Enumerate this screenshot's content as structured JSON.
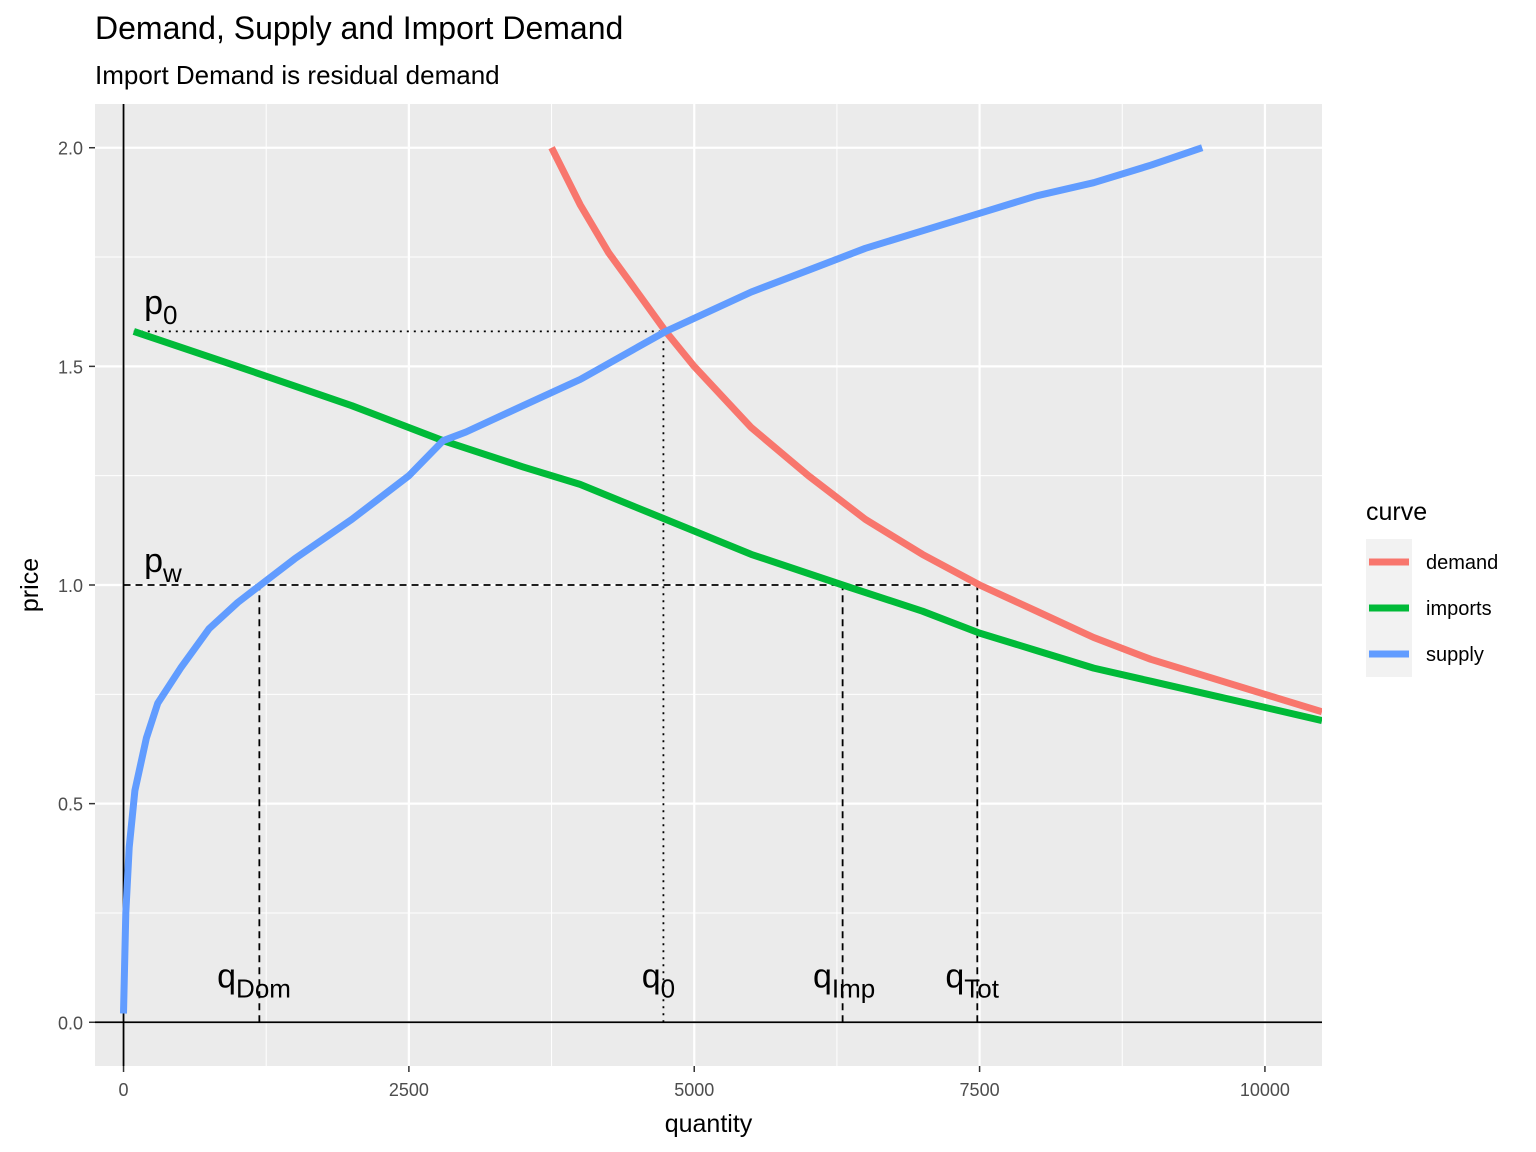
{
  "chart_data": {
    "type": "line",
    "title": "Demand, Supply and Import Demand",
    "subtitle": "Import Demand is residual demand",
    "xlabel": "quantity",
    "ylabel": "price",
    "xlim": [
      -250,
      10500
    ],
    "ylim": [
      -0.1,
      2.1
    ],
    "grid": true,
    "x_ticks": [
      0,
      2500,
      5000,
      7500,
      10000
    ],
    "x_tick_labels": [
      "0",
      "2500",
      "5000",
      "7500",
      "10000"
    ],
    "y_ticks": [
      0.0,
      0.5,
      1.0,
      1.5,
      2.0
    ],
    "y_tick_labels": [
      "0.0",
      "0.5",
      "1.0",
      "1.5",
      "2.0"
    ],
    "legend": {
      "title": "curve",
      "position": "right",
      "entries": [
        "demand",
        "imports",
        "supply"
      ]
    },
    "series": [
      {
        "name": "demand",
        "color": "#F8766D",
        "x": [
          3750,
          4000,
          4250,
          4500,
          4750,
          5000,
          5500,
          6000,
          6500,
          7000,
          7500,
          8000,
          8500,
          9000,
          9500,
          10000,
          10500
        ],
        "y": [
          2.0,
          1.87,
          1.76,
          1.67,
          1.58,
          1.5,
          1.36,
          1.25,
          1.15,
          1.07,
          1.0,
          0.94,
          0.88,
          0.83,
          0.79,
          0.75,
          0.71
        ]
      },
      {
        "name": "imports",
        "color": "#00BA38",
        "x": [
          90,
          1000,
          2000,
          2800,
          3500,
          4000,
          4750,
          5500,
          6300,
          7000,
          7500,
          8000,
          8500,
          9000,
          9500,
          10000,
          10500
        ],
        "y": [
          1.58,
          1.5,
          1.41,
          1.33,
          1.27,
          1.23,
          1.15,
          1.07,
          1.0,
          0.94,
          0.89,
          0.85,
          0.81,
          0.78,
          0.75,
          0.72,
          0.69
        ]
      },
      {
        "name": "supply",
        "color": "#619CFF",
        "x": [
          0,
          20,
          50,
          100,
          200,
          300,
          500,
          750,
          1000,
          1200,
          1500,
          2000,
          2500,
          2800,
          3000,
          3500,
          4000,
          4750,
          5000,
          5500,
          6000,
          6500,
          7000,
          7500,
          8000,
          8500,
          9000,
          9450
        ],
        "y": [
          0.02,
          0.25,
          0.4,
          0.53,
          0.65,
          0.73,
          0.81,
          0.9,
          0.96,
          1.0,
          1.06,
          1.15,
          1.25,
          1.33,
          1.35,
          1.41,
          1.47,
          1.58,
          1.61,
          1.67,
          1.72,
          1.77,
          1.81,
          1.85,
          1.89,
          1.92,
          1.96,
          2.0
        ]
      }
    ],
    "reference_lines": [
      {
        "kind": "horizontal",
        "y": 1.58,
        "x_from": 90,
        "x_to": 4730,
        "style": "dotted"
      },
      {
        "kind": "vertical",
        "x": 4730,
        "y_from": 0,
        "y_to": 1.58,
        "style": "dotted"
      },
      {
        "kind": "horizontal",
        "y": 1.0,
        "x_from": 0,
        "x_to": 7480,
        "style": "dashed"
      },
      {
        "kind": "vertical",
        "x": 1190,
        "y_from": 0,
        "y_to": 1.0,
        "style": "dashed"
      },
      {
        "kind": "vertical",
        "x": 6300,
        "y_from": 0,
        "y_to": 1.0,
        "style": "dashed"
      },
      {
        "kind": "vertical",
        "x": 7480,
        "y_from": 0,
        "y_to": 1.0,
        "style": "dashed"
      }
    ],
    "axis_lines": [
      {
        "kind": "horizontal",
        "y": 0.0
      },
      {
        "kind": "vertical",
        "x": 0
      }
    ],
    "annotations": [
      {
        "main": "p",
        "sub": "0",
        "x": 180,
        "y": 1.62
      },
      {
        "main": "p",
        "sub": "w",
        "x": 180,
        "y": 1.03
      },
      {
        "main": "q",
        "sub": "Dom",
        "x": 820,
        "y": 0.08
      },
      {
        "main": "q",
        "sub": "0",
        "x": 4540,
        "y": 0.08
      },
      {
        "main": "q",
        "sub": "Imp",
        "x": 6040,
        "y": 0.08
      },
      {
        "main": "q",
        "sub": "Tot",
        "x": 7200,
        "y": 0.08
      }
    ]
  }
}
